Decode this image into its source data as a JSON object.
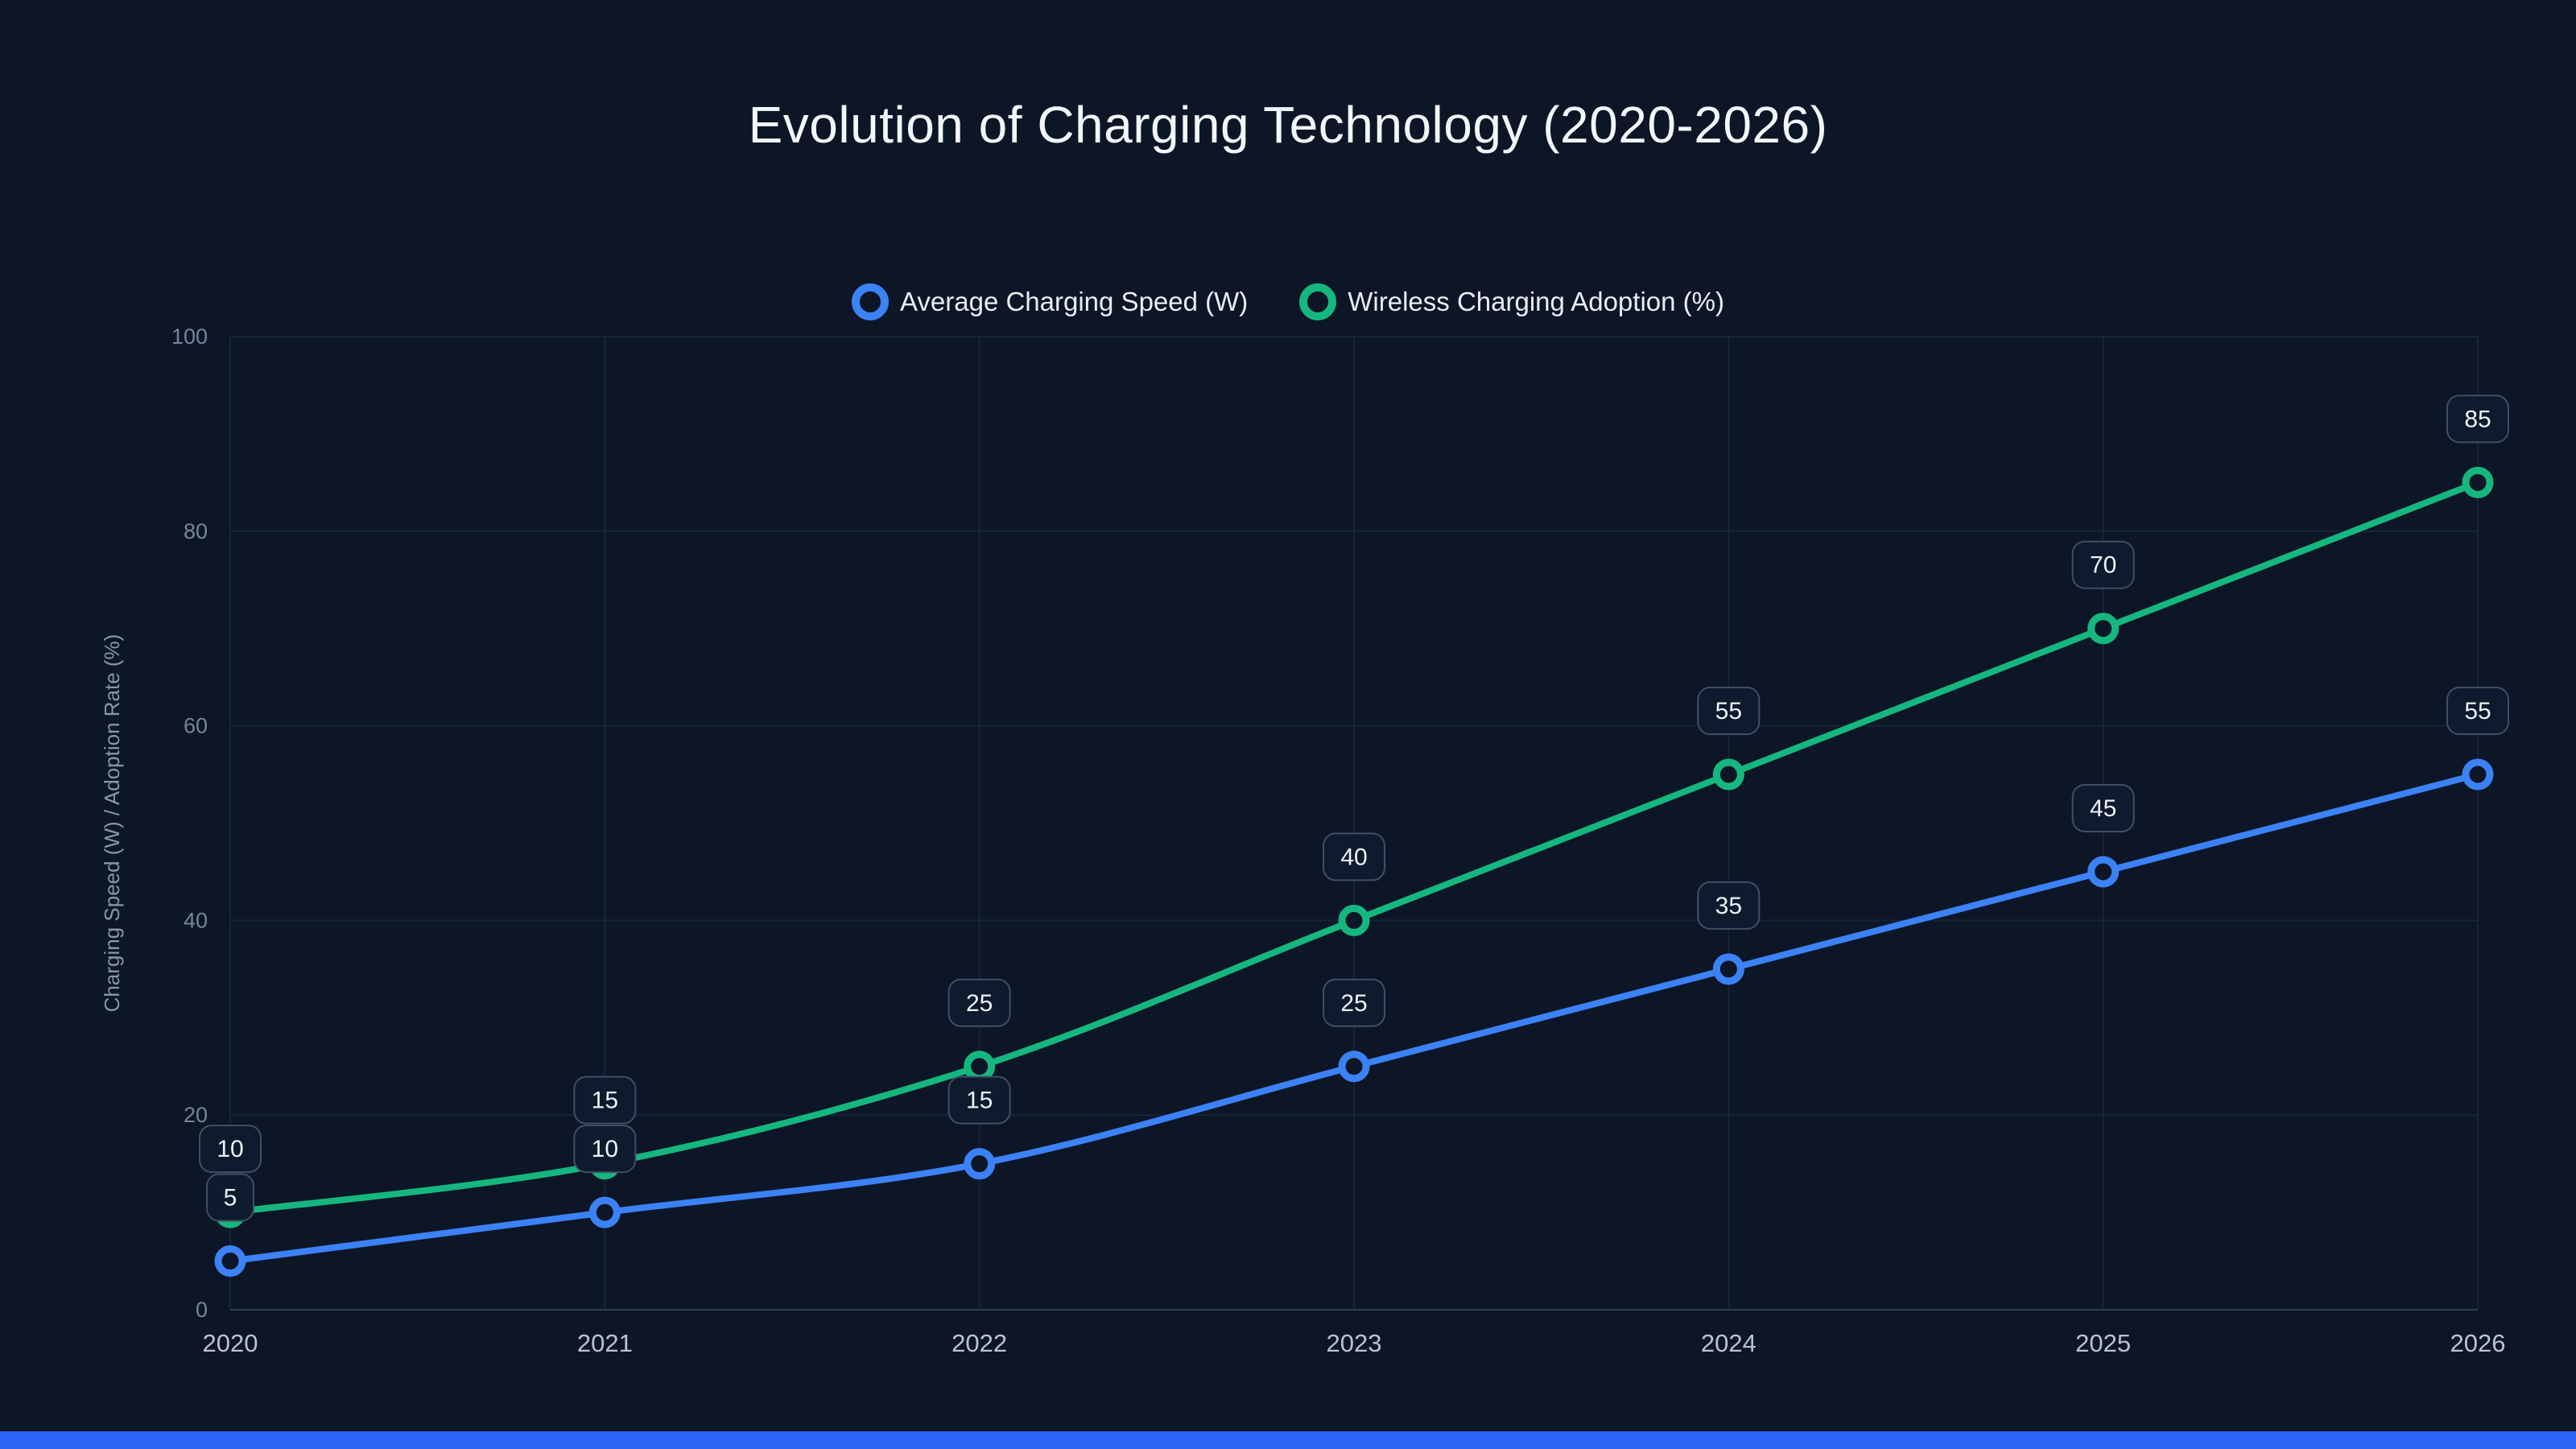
{
  "page": {
    "background_color": "#0d1626",
    "accent_bar_color": "#2c63f2"
  },
  "chart_data": {
    "type": "line",
    "title": "Evolution of Charging Technology (2020-2026)",
    "categories": [
      "2020",
      "2021",
      "2022",
      "2023",
      "2024",
      "2025",
      "2026"
    ],
    "series": [
      {
        "name": "Average Charging Speed (W)",
        "color": "#3b82f6",
        "values": [
          5,
          10,
          15,
          25,
          35,
          45,
          55
        ]
      },
      {
        "name": "Wireless Charging Adoption (%)",
        "color": "#15b77f",
        "values": [
          10,
          15,
          25,
          40,
          55,
          70,
          85
        ]
      }
    ],
    "xlabel": "",
    "ylabel": "Charging Speed (W) / Adoption Rate (%)",
    "ylim": [
      0,
      100
    ],
    "yticks": [
      0,
      20,
      40,
      60,
      80,
      100
    ],
    "grid": true,
    "legend_position": "top",
    "data_labels": true,
    "colors": {
      "grid_line": "#223050",
      "axis_line": "#2e3c55",
      "y_tick_text": "#77849b",
      "x_tick_text": "#b9c4d3",
      "axis_title_text": "#8796ad",
      "label_box_fill": "#0e1a2d",
      "label_box_border": "#414e63",
      "label_box_text": "#eef2f7"
    }
  }
}
